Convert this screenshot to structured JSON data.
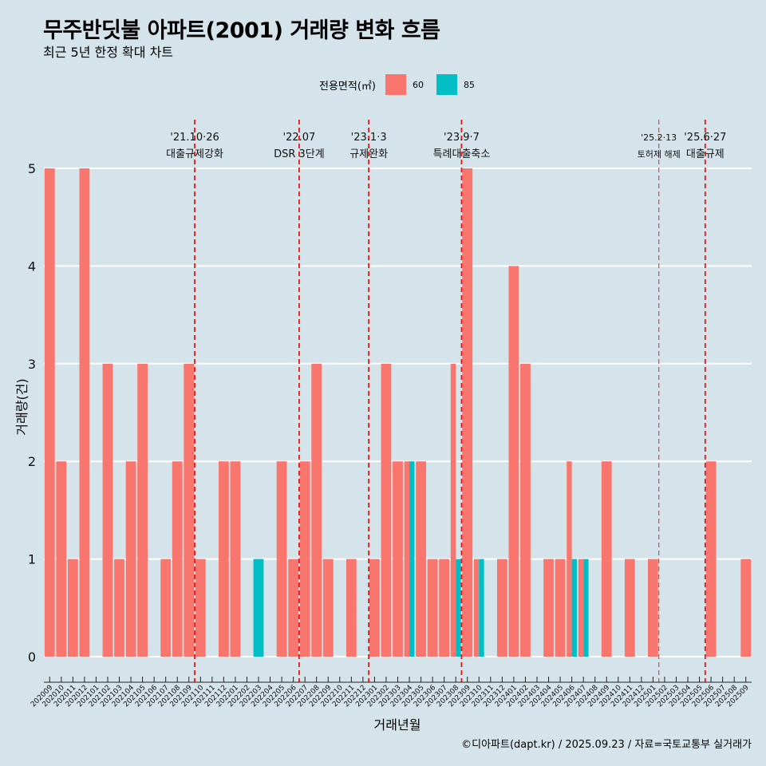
{
  "header": {
    "title": "무주반딧불 아파트(2001) 거래량 변화 흐름",
    "subtitle": "최근 5년 한정 확대 차트"
  },
  "legend": {
    "title": "전용면적(㎡)",
    "items": [
      {
        "label": "60",
        "color": "#f8766d"
      },
      {
        "label": "85",
        "color": "#00bfc4"
      }
    ]
  },
  "footer": {
    "credit": "©디아파트(dapt.kr) / 2025.09.23 / 자료=국토교통부 실거래가"
  },
  "chart_data": {
    "type": "bar",
    "stacked": true,
    "title": "무주반딧불 아파트(2001) 거래량 변화 흐름",
    "xlabel": "거래년월",
    "ylabel": "거래량(건)",
    "ylim": [
      0,
      5
    ],
    "yticks": [
      0,
      1,
      2,
      3,
      4,
      5
    ],
    "grid": "horizontal",
    "legend_position": "top",
    "categories": [
      "202009",
      "202010",
      "202011",
      "202012",
      "202101",
      "202102",
      "202103",
      "202104",
      "202105",
      "202106",
      "202107",
      "202108",
      "202109",
      "202110",
      "202111",
      "202112",
      "202201",
      "202202",
      "202203",
      "202204",
      "202205",
      "202206",
      "202207",
      "202208",
      "202209",
      "202210",
      "202211",
      "202212",
      "202301",
      "202302",
      "202303",
      "202304",
      "202305",
      "202306",
      "202307",
      "202308",
      "202309",
      "202310",
      "202311",
      "202312",
      "202401",
      "202402",
      "202403",
      "202404",
      "202405",
      "202406",
      "202407",
      "202408",
      "202409",
      "202410",
      "202411",
      "202412",
      "202501",
      "202502",
      "202503",
      "202504",
      "202505",
      "202506",
      "202507",
      "202508",
      "202509"
    ],
    "bars": [
      {
        "x": "202009",
        "series": "60",
        "value": 5
      },
      {
        "x": "202010",
        "series": "60",
        "value": 2
      },
      {
        "x": "202011",
        "series": "60",
        "value": 1
      },
      {
        "x": "202012",
        "series": "60",
        "value": 5
      },
      {
        "x": "202102",
        "series": "60",
        "value": 3
      },
      {
        "x": "202103",
        "series": "60",
        "value": 1
      },
      {
        "x": "202104",
        "series": "60",
        "value": 2
      },
      {
        "x": "202105",
        "series": "60",
        "value": 3
      },
      {
        "x": "202107",
        "series": "60",
        "value": 1
      },
      {
        "x": "202108",
        "series": "60",
        "value": 2
      },
      {
        "x": "202109",
        "series": "60",
        "value": 3
      },
      {
        "x": "202110",
        "series": "60",
        "value": 1
      },
      {
        "x": "202112",
        "series": "60",
        "value": 2
      },
      {
        "x": "202201",
        "series": "60",
        "value": 2
      },
      {
        "x": "202203",
        "series": "85",
        "value": 1
      },
      {
        "x": "202205",
        "series": "60",
        "value": 2
      },
      {
        "x": "202206",
        "series": "60",
        "value": 1
      },
      {
        "x": "202207",
        "series": "60",
        "value": 2
      },
      {
        "x": "202208",
        "series": "60",
        "value": 3
      },
      {
        "x": "202209",
        "series": "60",
        "value": 1
      },
      {
        "x": "202211",
        "series": "60",
        "value": 1
      },
      {
        "x": "202301",
        "series": "60",
        "value": 1
      },
      {
        "x": "202302",
        "series": "60",
        "value": 3
      },
      {
        "x": "202303",
        "series": "60",
        "value": 2
      },
      {
        "x": "202304",
        "series": "60",
        "value": 2,
        "slot": 0,
        "slots": 2
      },
      {
        "x": "202304",
        "series": "85",
        "value": 2,
        "slot": 1,
        "slots": 2
      },
      {
        "x": "202305",
        "series": "60",
        "value": 2
      },
      {
        "x": "202306",
        "series": "60",
        "value": 1
      },
      {
        "x": "202307",
        "series": "60",
        "value": 1
      },
      {
        "x": "202308",
        "series": "60",
        "value": 3,
        "slot": 0,
        "slots": 2
      },
      {
        "x": "202308",
        "series": "85",
        "value": 1,
        "slot": 1,
        "slots": 2
      },
      {
        "x": "202309",
        "series": "60",
        "value": 5
      },
      {
        "x": "202310",
        "series": "60",
        "value": 1,
        "slot": 0,
        "slots": 2
      },
      {
        "x": "202310",
        "series": "85",
        "value": 1,
        "slot": 1,
        "slots": 2
      },
      {
        "x": "202312",
        "series": "60",
        "value": 1
      },
      {
        "x": "202401",
        "series": "60",
        "value": 4
      },
      {
        "x": "202402",
        "series": "60",
        "value": 3
      },
      {
        "x": "202404",
        "series": "60",
        "value": 1
      },
      {
        "x": "202405",
        "series": "60",
        "value": 1
      },
      {
        "x": "202406",
        "series": "60",
        "value": 2,
        "slot": 0,
        "slots": 2
      },
      {
        "x": "202406",
        "series": "85",
        "value": 1,
        "slot": 1,
        "slots": 2
      },
      {
        "x": "202407",
        "series": "60",
        "value": 1,
        "slot": 0,
        "slots": 2
      },
      {
        "x": "202407",
        "series": "85",
        "value": 1,
        "slot": 1,
        "slots": 2
      },
      {
        "x": "202409",
        "series": "60",
        "value": 2
      },
      {
        "x": "202411",
        "series": "60",
        "value": 1
      },
      {
        "x": "202501",
        "series": "60",
        "value": 1
      },
      {
        "x": "202506",
        "series": "60",
        "value": 2
      },
      {
        "x": "202509",
        "series": "60",
        "value": 1
      }
    ],
    "annotations": [
      {
        "x": "202110",
        "date": "'21.10·26",
        "label": "대출규제강화"
      },
      {
        "x": "202207",
        "date": "'22.07",
        "label": "DSR 3단계"
      },
      {
        "x": "202301",
        "date": "'23.1·3",
        "label": "규제완화"
      },
      {
        "x": "202309",
        "date": "'23.9·7",
        "label": "특례대출축소"
      },
      {
        "x": "202502",
        "date": "'25.2·13",
        "label": "토허제 해제"
      },
      {
        "x": "202506",
        "date": "'25.6·27",
        "label": "대출규제"
      }
    ]
  }
}
